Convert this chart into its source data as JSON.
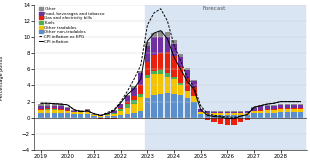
{
  "x_numeric": [
    2019.0,
    2019.25,
    2019.5,
    2019.75,
    2020.0,
    2020.25,
    2020.5,
    2020.75,
    2021.0,
    2021.25,
    2021.5,
    2021.75,
    2022.0,
    2022.25,
    2022.5,
    2022.75,
    2023.0,
    2023.25,
    2023.5,
    2023.75,
    2024.0,
    2024.25,
    2024.5,
    2024.75,
    2025.0,
    2025.25,
    2025.5,
    2025.75,
    2026.0,
    2026.25,
    2026.5,
    2026.75,
    2027.0,
    2027.25,
    2027.5,
    2027.75,
    2028.0,
    2028.25,
    2028.5,
    2028.75
  ],
  "other_non_tradables": [
    0.6,
    0.65,
    0.65,
    0.6,
    0.55,
    0.5,
    0.45,
    0.5,
    0.2,
    0.15,
    0.2,
    0.25,
    0.35,
    0.45,
    0.65,
    0.9,
    2.5,
    2.8,
    3.0,
    3.1,
    3.0,
    2.8,
    2.4,
    2.0,
    0.5,
    0.45,
    0.4,
    0.4,
    0.4,
    0.4,
    0.4,
    0.4,
    0.55,
    0.6,
    0.65,
    0.65,
    0.7,
    0.7,
    0.7,
    0.7
  ],
  "other_tradables": [
    0.35,
    0.35,
    0.35,
    0.35,
    0.3,
    0.25,
    0.25,
    0.3,
    0.1,
    0.1,
    0.15,
    0.25,
    0.5,
    0.8,
    1.1,
    1.7,
    2.4,
    2.6,
    2.4,
    2.0,
    1.8,
    1.3,
    0.9,
    0.7,
    0.2,
    0.15,
    0.15,
    0.15,
    0.15,
    0.15,
    0.15,
    0.15,
    0.25,
    0.3,
    0.3,
    0.3,
    0.35,
    0.35,
    0.35,
    0.35
  ],
  "fuels": [
    0.05,
    0.05,
    0.05,
    0.05,
    0.05,
    0.0,
    0.0,
    0.0,
    0.0,
    0.0,
    0.1,
    0.15,
    0.25,
    0.45,
    0.45,
    0.35,
    0.35,
    0.45,
    0.55,
    0.45,
    0.25,
    0.15,
    0.05,
    0.0,
    0.0,
    0.0,
    0.0,
    0.0,
    0.0,
    0.0,
    0.0,
    0.0,
    0.0,
    0.0,
    0.0,
    0.0,
    0.0,
    0.0,
    0.0,
    0.0
  ],
  "gas_electricity": [
    0.1,
    0.1,
    0.1,
    0.1,
    0.05,
    0.0,
    0.0,
    0.0,
    0.0,
    -0.1,
    -0.15,
    -0.1,
    0.05,
    0.25,
    0.55,
    1.1,
    1.6,
    1.9,
    2.1,
    2.6,
    2.6,
    2.1,
    1.6,
    1.1,
    0.05,
    -0.25,
    -0.5,
    -0.8,
    -0.9,
    -0.85,
    -0.5,
    -0.25,
    0.05,
    0.1,
    0.1,
    0.1,
    0.1,
    0.1,
    0.1,
    0.1
  ],
  "food_bev_tobacco": [
    0.3,
    0.3,
    0.3,
    0.3,
    0.2,
    0.15,
    0.15,
    0.2,
    0.1,
    0.1,
    0.15,
    0.25,
    0.5,
    0.75,
    1.0,
    1.5,
    2.0,
    2.2,
    2.0,
    1.8,
    1.5,
    1.2,
    0.95,
    0.75,
    0.3,
    0.2,
    0.2,
    0.2,
    0.2,
    0.2,
    0.2,
    0.25,
    0.35,
    0.4,
    0.4,
    0.4,
    0.4,
    0.4,
    0.4,
    0.4
  ],
  "other": [
    0.3,
    0.3,
    0.3,
    0.3,
    0.2,
    0.1,
    0.1,
    0.1,
    0.05,
    0.05,
    0.05,
    0.05,
    0.1,
    0.1,
    0.15,
    0.2,
    0.5,
    0.55,
    0.65,
    0.65,
    0.45,
    0.35,
    0.25,
    0.15,
    0.05,
    0.05,
    0.05,
    0.05,
    0.05,
    0.05,
    0.05,
    0.05,
    0.1,
    0.1,
    0.1,
    0.1,
    0.1,
    0.1,
    0.1,
    0.1
  ],
  "cpi_inflation": [
    1.8,
    1.8,
    1.75,
    1.7,
    1.6,
    1.0,
    0.75,
    0.85,
    0.5,
    0.3,
    0.5,
    0.9,
    1.85,
    2.9,
    3.6,
    4.8,
    9.5,
    10.5,
    10.8,
    9.8,
    7.5,
    6.0,
    4.5,
    3.5,
    1.0,
    0.3,
    0.15,
    0.1,
    -0.1,
    -0.1,
    0.2,
    0.4,
    1.3,
    1.5,
    1.7,
    1.8,
    2.0,
    2.0,
    2.0,
    2.0
  ],
  "cpi_ex_epg": [
    1.8,
    1.8,
    1.75,
    1.7,
    1.6,
    1.0,
    0.75,
    0.85,
    0.5,
    0.3,
    0.65,
    1.0,
    2.0,
    3.3,
    4.8,
    6.5,
    11.5,
    13.0,
    13.5,
    12.0,
    9.0,
    7.0,
    5.0,
    3.8,
    1.5,
    0.5,
    0.3,
    0.2,
    0.1,
    0.05,
    0.2,
    0.4,
    1.3,
    1.5,
    1.7,
    1.8,
    2.0,
    2.0,
    2.0,
    2.0
  ],
  "forecast_start": 2023.0,
  "colors": {
    "other_non_tradables": "#5B8FCC",
    "other_tradables": "#F5C400",
    "fuels": "#4CAF50",
    "gas_electricity": "#E8220A",
    "food_bev_tobacco": "#7030A0",
    "other": "#8C8C8C",
    "cpi_inflation": "#000000",
    "cpi_ex_epg": "#000000"
  },
  "forecast_bg": "#D9E5F3",
  "ylim": [
    -4,
    14
  ],
  "yticks": [
    -4,
    -2,
    0,
    2,
    4,
    6,
    8,
    10,
    12,
    14
  ],
  "xticks": [
    2019,
    2020,
    2021,
    2022,
    2023,
    2024,
    2025,
    2026,
    2027,
    2028
  ],
  "ylabel": "Percentage points",
  "forecast_label": "Forecast",
  "bar_width": 0.2
}
